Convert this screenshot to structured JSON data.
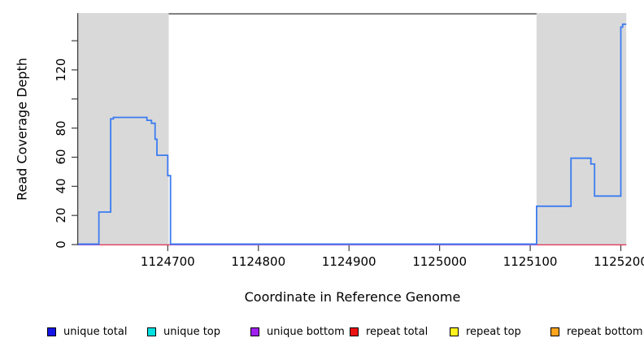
{
  "chart_data": {
    "type": "line",
    "title": "",
    "xlabel": "Coordinate in Reference Genome",
    "ylabel": "Read Coverage Depth",
    "xlim": [
      1124601,
      1125206
    ],
    "ylim": [
      0,
      158.5
    ],
    "grid": false,
    "legend_position": "bottom",
    "x_ticks": [
      {
        "v": 1124700,
        "label": "1124700"
      },
      {
        "v": 1124800,
        "label": "1124800"
      },
      {
        "v": 1124900,
        "label": "1124900"
      },
      {
        "v": 1125000,
        "label": "1125000"
      },
      {
        "v": 1125100,
        "label": "1125100"
      },
      {
        "v": 1125200,
        "label": "1125200"
      }
    ],
    "y_ticks": [
      {
        "v": 0,
        "label": "0"
      },
      {
        "v": 20,
        "label": "20"
      },
      {
        "v": 40,
        "label": "40"
      },
      {
        "v": 60,
        "label": "60"
      },
      {
        "v": 80,
        "label": "80"
      },
      {
        "v": 100,
        "label": ""
      },
      {
        "v": 120,
        "label": "120"
      },
      {
        "v": 140,
        "label": ""
      }
    ],
    "shaded_regions": [
      {
        "from": 1124601,
        "to": 1124701
      },
      {
        "from": 1125107,
        "to": 1125206
      }
    ],
    "shade_color": "#d9d9d9",
    "frame_color": "#575757",
    "axis_color": "#3d3d3d",
    "series": [
      {
        "name": "repeat total",
        "color": "#e8365c",
        "width": 1.3,
        "dy": 0.4,
        "segments": [
          [
            [
              1124601,
              0
            ],
            [
              1125206,
              0
            ]
          ]
        ]
      },
      {
        "name": "unique bottom",
        "color": "#9b55e6",
        "width": 2,
        "dy": -0.1,
        "segments": [
          [
            [
              1124601,
              0
            ],
            [
              1124624,
              0
            ]
          ],
          [
            [
              1124703,
              0
            ],
            [
              1125107,
              0
            ]
          ]
        ]
      },
      {
        "name": "unique total",
        "color": "#3b7cf0",
        "width": 1.8,
        "dy": -0.6,
        "segments": [
          [
            [
              1124601,
              0
            ],
            [
              1124624,
              0
            ],
            [
              1124624,
              22
            ],
            [
              1124637,
              22
            ],
            [
              1124637,
              86
            ],
            [
              1124640,
              86
            ],
            [
              1124640,
              87
            ],
            [
              1124677,
              87
            ],
            [
              1124677,
              85
            ],
            [
              1124682,
              85
            ],
            [
              1124682,
              83
            ],
            [
              1124686,
              83
            ],
            [
              1124686,
              72
            ],
            [
              1124688,
              72
            ],
            [
              1124688,
              61
            ],
            [
              1124700,
              61
            ],
            [
              1124700,
              47
            ],
            [
              1124703,
              47
            ],
            [
              1124703,
              0
            ],
            [
              1125107,
              0
            ],
            [
              1125107,
              26
            ],
            [
              1125145,
              26
            ],
            [
              1125145,
              59
            ],
            [
              1125167,
              59
            ],
            [
              1125167,
              55
            ],
            [
              1125171,
              55
            ],
            [
              1125171,
              33
            ],
            [
              1125200,
              33
            ],
            [
              1125200,
              149
            ],
            [
              1125202,
              149
            ],
            [
              1125202,
              151
            ],
            [
              1125206,
              151
            ]
          ]
        ]
      }
    ],
    "legend": [
      {
        "label": "unique total",
        "color": "#1515e8"
      },
      {
        "label": "unique top",
        "color": "#00e0e0"
      },
      {
        "label": "unique bottom",
        "color": "#a020f0"
      },
      {
        "label": "repeat total",
        "color": "#ee1111"
      },
      {
        "label": "repeat top",
        "color": "#fff21e"
      },
      {
        "label": "repeat bottom",
        "color": "#ffa51e"
      }
    ]
  }
}
